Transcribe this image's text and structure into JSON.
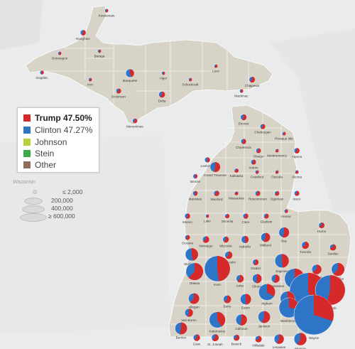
{
  "colors": {
    "trump": "#d62a2a",
    "clinton": "#2e74c7",
    "johnson": "#bcce3a",
    "stein": "#3aa845",
    "other": "#8b6f5a",
    "state_fill": "#d8d3c7",
    "water": "#e9ebec"
  },
  "legend": {
    "trump": "Trump 47.50%",
    "clinton": "Clinton 47.27%",
    "johnson": "Johnson",
    "stein": "Stein",
    "other": "Other"
  },
  "size_legend": [
    "≤ 2,000",
    "200,000",
    "400,000",
    "≥ 600,000"
  ],
  "background_labels": [
    "Wisconsin"
  ],
  "counties": [
    {
      "name": "Keweenaw",
      "trump": 0.62,
      "votes": 1300
    },
    {
      "name": "Houghton",
      "trump": 0.58,
      "votes": 15000
    },
    {
      "name": "Ontonagon",
      "trump": 0.62,
      "votes": 3500
    },
    {
      "name": "Baraga",
      "trump": 0.58,
      "votes": 3800
    },
    {
      "name": "Gogebic",
      "trump": 0.56,
      "votes": 7800
    },
    {
      "name": "Iron",
      "trump": 0.62,
      "votes": 6200
    },
    {
      "name": "Marquette",
      "trump": 0.44,
      "votes": 34000
    },
    {
      "name": "Alger",
      "trump": 0.55,
      "votes": 4600
    },
    {
      "name": "Luce",
      "trump": 0.66,
      "votes": 2700
    },
    {
      "name": "Chippewa",
      "trump": 0.6,
      "votes": 17000
    },
    {
      "name": "Schoolcraft",
      "trump": 0.63,
      "votes": 4200
    },
    {
      "name": "Mackinac",
      "trump": 0.61,
      "votes": 6500
    },
    {
      "name": "Dickinson",
      "trump": 0.65,
      "votes": 13000
    },
    {
      "name": "Delta",
      "trump": 0.61,
      "votes": 19000
    },
    {
      "name": "Menominee",
      "trump": 0.62,
      "votes": 11000
    },
    {
      "name": "Emmet",
      "trump": 0.56,
      "votes": 18000
    },
    {
      "name": "Cheboygan",
      "trump": 0.63,
      "votes": 13000
    },
    {
      "name": "Presque Isle",
      "trump": 0.63,
      "votes": 7000
    },
    {
      "name": "Charlevoix",
      "trump": 0.59,
      "votes": 14000
    },
    {
      "name": "Otsego",
      "trump": 0.66,
      "votes": 12000
    },
    {
      "name": "Montmorency",
      "trump": 0.7,
      "votes": 5200
    },
    {
      "name": "Alpena",
      "trump": 0.62,
      "votes": 15000
    },
    {
      "name": "Leelanau",
      "trump": 0.49,
      "votes": 14000
    },
    {
      "name": "Antrim",
      "trump": 0.62,
      "votes": 13000
    },
    {
      "name": "Grand Traverse",
      "trump": 0.53,
      "votes": 50000
    },
    {
      "name": "Kalkaska",
      "trump": 0.71,
      "votes": 9000
    },
    {
      "name": "Crawford",
      "trump": 0.64,
      "votes": 7000
    },
    {
      "name": "Oscoda",
      "trump": 0.69,
      "votes": 4300
    },
    {
      "name": "Alcona",
      "trump": 0.66,
      "votes": 6400
    },
    {
      "name": "Benzie",
      "trump": 0.53,
      "votes": 10000
    },
    {
      "name": "Manistee",
      "trump": 0.55,
      "votes": 12000
    },
    {
      "name": "Wexford",
      "trump": 0.67,
      "votes": 15000
    },
    {
      "name": "Missaukee",
      "trump": 0.75,
      "votes": 7300
    },
    {
      "name": "Roscommon",
      "trump": 0.63,
      "votes": 13000
    },
    {
      "name": "Ogemaw",
      "trump": 0.67,
      "votes": 10500
    },
    {
      "name": "Iosco",
      "trump": 0.62,
      "votes": 12500
    },
    {
      "name": "Arenac",
      "trump": 0.63,
      "votes": 7400
    },
    {
      "name": "Mason",
      "trump": 0.58,
      "votes": 14500
    },
    {
      "name": "Lake",
      "trump": 0.59,
      "votes": 5200
    },
    {
      "name": "Osceola",
      "trump": 0.72,
      "votes": 10000
    },
    {
      "name": "Clare",
      "trump": 0.63,
      "votes": 14000
    },
    {
      "name": "Gladwin",
      "trump": 0.65,
      "votes": 12700
    },
    {
      "name": "Bay",
      "trump": 0.54,
      "votes": 52000
    },
    {
      "name": "Huron",
      "trump": 0.67,
      "votes": 16500
    },
    {
      "name": "Oceana",
      "trump": 0.63,
      "votes": 12000
    },
    {
      "name": "Newaygo",
      "trump": 0.68,
      "votes": 22000
    },
    {
      "name": "Mecosta",
      "trump": 0.62,
      "votes": 18500
    },
    {
      "name": "Isabella",
      "trump": 0.48,
      "votes": 27000
    },
    {
      "name": "Midland",
      "trump": 0.57,
      "votes": 42000
    },
    {
      "name": "Tuscola",
      "trump": 0.67,
      "votes": 26000
    },
    {
      "name": "Sanilac",
      "trump": 0.7,
      "votes": 20000
    },
    {
      "name": "Saginaw",
      "trump": 0.48,
      "votes": 94000
    },
    {
      "name": "Muskegon",
      "trump": 0.47,
      "votes": 79000
    },
    {
      "name": "Montcalm",
      "trump": 0.64,
      "votes": 28000
    },
    {
      "name": "Gratiot",
      "trump": 0.6,
      "votes": 17500
    },
    {
      "name": "Lapeer",
      "trump": 0.66,
      "votes": 46000
    },
    {
      "name": "Genesee",
      "trump": 0.43,
      "votes": 197000
    },
    {
      "name": "St. Clair",
      "trump": 0.62,
      "votes": 82000
    },
    {
      "name": "Ottawa",
      "trump": 0.62,
      "votes": 145000
    },
    {
      "name": "Kent",
      "trump": 0.48,
      "votes": 318000
    },
    {
      "name": "Ionia",
      "trump": 0.61,
      "votes": 28000
    },
    {
      "name": "Clinton",
      "trump": 0.53,
      "votes": 42000
    },
    {
      "name": "Shiawassee",
      "trump": 0.57,
      "votes": 34000
    },
    {
      "name": "Oakland",
      "trump": 0.44,
      "votes": 670000
    },
    {
      "name": "Macomb",
      "trump": 0.54,
      "votes": 430000
    },
    {
      "name": "Allegan",
      "trump": 0.62,
      "votes": 57000
    },
    {
      "name": "Barry",
      "trump": 0.62,
      "votes": 30000
    },
    {
      "name": "Eaton",
      "trump": 0.49,
      "votes": 57000
    },
    {
      "name": "Ingham",
      "trump": 0.34,
      "votes": 133000
    },
    {
      "name": "Livingston",
      "trump": 0.62,
      "votes": 102000
    },
    {
      "name": "Washtenaw",
      "trump": 0.27,
      "votes": 192000
    },
    {
      "name": "Wayne",
      "trump": 0.3,
      "votes": 780000
    },
    {
      "name": "Van Buren",
      "trump": 0.55,
      "votes": 33000
    },
    {
      "name": "Kalamazoo",
      "trump": 0.41,
      "votes": 125000
    },
    {
      "name": "Calhoun",
      "trump": 0.53,
      "votes": 61000
    },
    {
      "name": "Jackson",
      "trump": 0.56,
      "votes": 70000
    },
    {
      "name": "Berrien",
      "trump": 0.53,
      "votes": 71000
    },
    {
      "name": "Cass",
      "trump": 0.61,
      "votes": 22000
    },
    {
      "name": "St. Joseph",
      "trump": 0.64,
      "votes": 25000
    },
    {
      "name": "Branch",
      "trump": 0.66,
      "votes": 18500
    },
    {
      "name": "Hillsdale",
      "trump": 0.7,
      "votes": 21000
    },
    {
      "name": "Lenawee",
      "trump": 0.58,
      "votes": 46000
    },
    {
      "name": "Monroe",
      "trump": 0.58,
      "votes": 76000
    }
  ]
}
